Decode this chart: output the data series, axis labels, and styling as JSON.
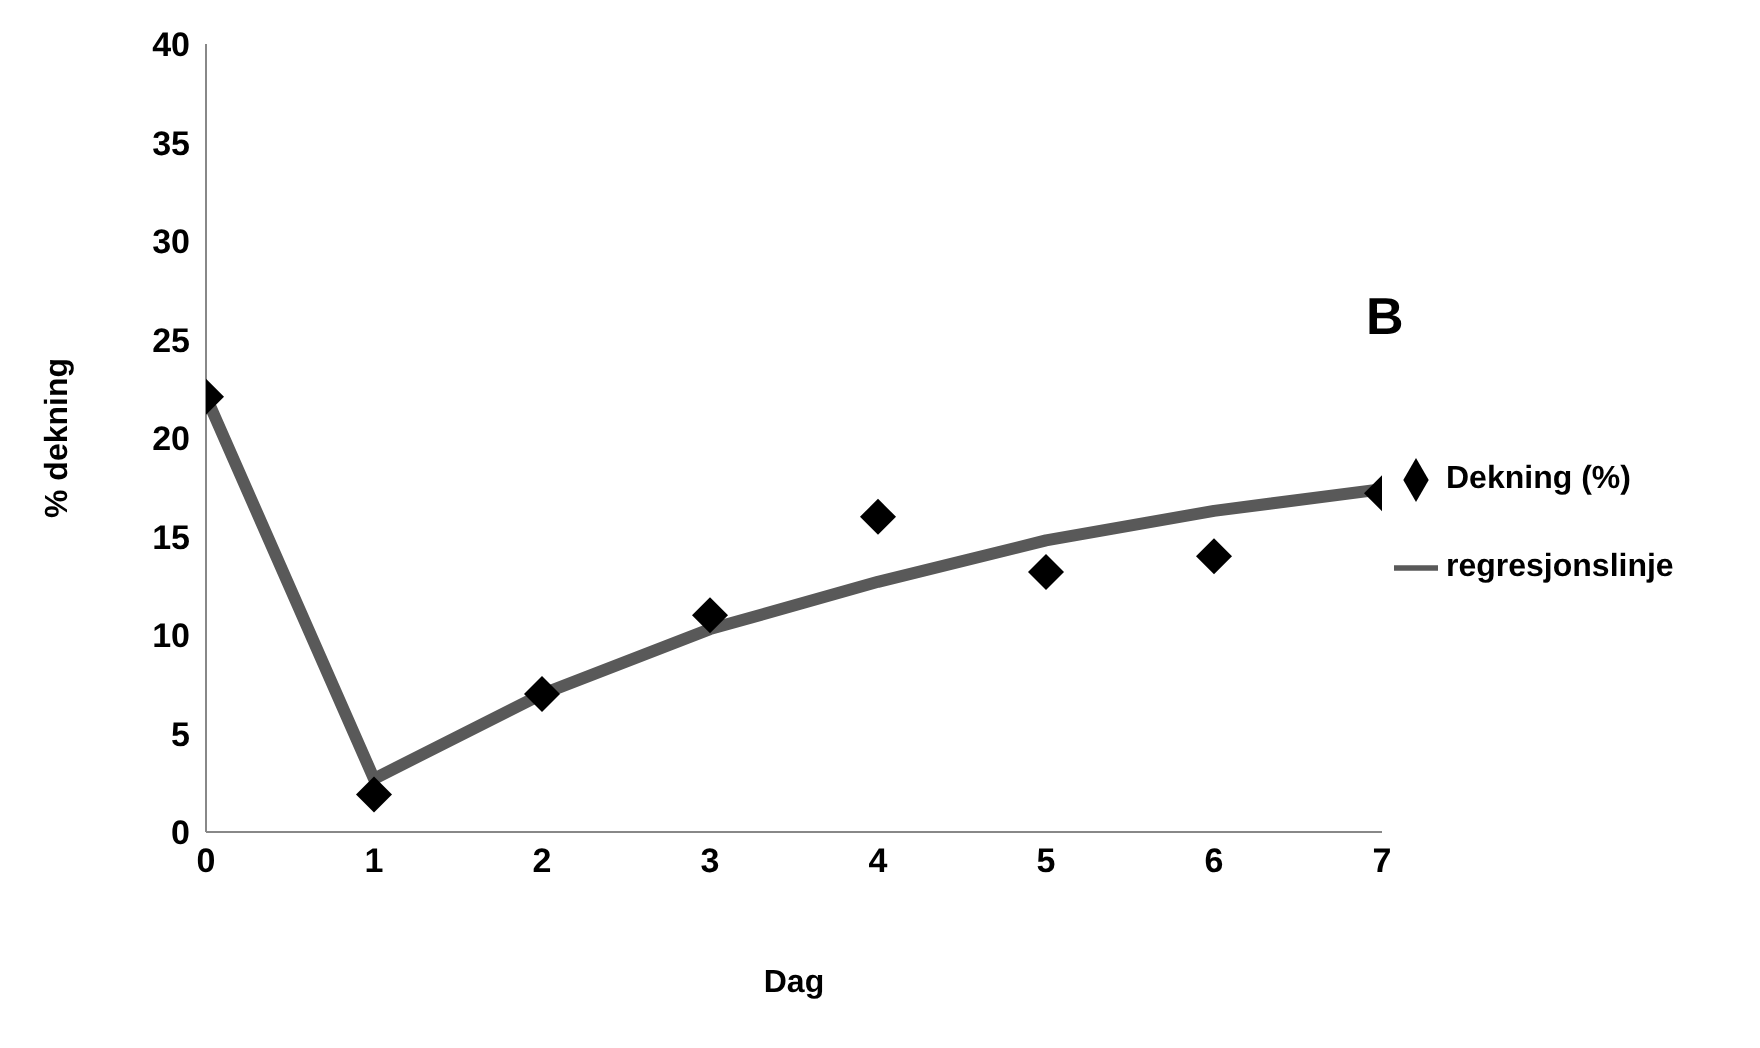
{
  "chart_data": {
    "type": "scatter",
    "xlabel": "Dag",
    "ylabel": "% dekning",
    "annotations": [
      "B"
    ],
    "x": [
      0,
      1,
      2,
      3,
      4,
      5,
      6,
      7
    ],
    "series": [
      {
        "name": "Dekning (%)",
        "type": "scatter",
        "color": "#000000",
        "marker": "diamond",
        "values": [
          22.1,
          1.9,
          7.0,
          11.0,
          16.0,
          13.2,
          14.0,
          17.2
        ]
      },
      {
        "name": "regresjonslinje",
        "type": "line",
        "color": "#595959",
        "marker": "none",
        "values": [
          22.1,
          2.7,
          7.0,
          10.3,
          12.7,
          14.8,
          16.3,
          17.4
        ]
      }
    ],
    "xlim": [
      0,
      7
    ],
    "xticks": [
      0,
      1,
      2,
      3,
      4,
      5,
      6,
      7
    ],
    "ylim": [
      0,
      40
    ],
    "yticks": [
      0,
      5,
      10,
      15,
      20,
      25,
      30,
      35,
      40
    ],
    "grid": false,
    "legend": "right"
  }
}
